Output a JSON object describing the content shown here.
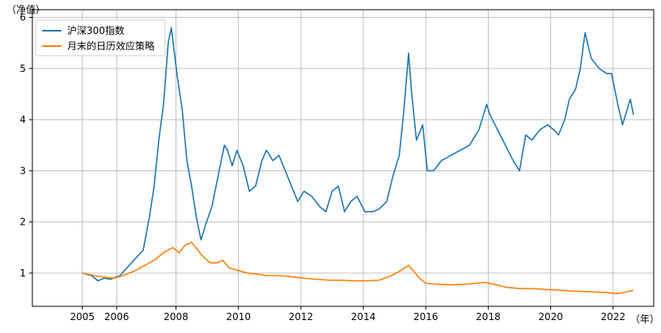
{
  "chart_data": {
    "type": "line",
    "title": "",
    "ylabel": "（净值）",
    "xlabel": "（年）",
    "xlim": [
      2003.4,
      2023.3
    ],
    "ylim": [
      0.35,
      6.15
    ],
    "grid": true,
    "legend_position": "top-left",
    "x_ticks": [
      {
        "value": 2005.0,
        "label": "2005"
      },
      {
        "value": 2006.1,
        "label": "2006"
      },
      {
        "value": 2008,
        "label": "2008"
      },
      {
        "value": 2010,
        "label": "2010"
      },
      {
        "value": 2012,
        "label": "2012"
      },
      {
        "value": 2014,
        "label": "2014"
      },
      {
        "value": 2016,
        "label": "2016"
      },
      {
        "value": 2018,
        "label": "2018"
      },
      {
        "value": 2020,
        "label": "2020"
      },
      {
        "value": 2022,
        "label": "2022"
      }
    ],
    "y_ticks": [
      {
        "value": 1,
        "label": "1"
      },
      {
        "value": 2,
        "label": "2"
      },
      {
        "value": 3,
        "label": "3"
      },
      {
        "value": 4,
        "label": "4"
      },
      {
        "value": 5,
        "label": "5"
      },
      {
        "value": 6,
        "label": "6"
      }
    ],
    "series": [
      {
        "name": "沪深300指数",
        "color": "#1f77b4",
        "points": [
          [
            2005.0,
            1.0
          ],
          [
            2005.3,
            0.95
          ],
          [
            2005.5,
            0.85
          ],
          [
            2005.7,
            0.9
          ],
          [
            2005.9,
            0.88
          ],
          [
            2006.2,
            0.95
          ],
          [
            2006.5,
            1.15
          ],
          [
            2006.8,
            1.35
          ],
          [
            2006.95,
            1.45
          ],
          [
            2007.15,
            2.1
          ],
          [
            2007.3,
            2.7
          ],
          [
            2007.45,
            3.6
          ],
          [
            2007.6,
            4.3
          ],
          [
            2007.75,
            5.5
          ],
          [
            2007.85,
            5.8
          ],
          [
            2007.95,
            5.3
          ],
          [
            2008.05,
            4.8
          ],
          [
            2008.2,
            4.2
          ],
          [
            2008.35,
            3.2
          ],
          [
            2008.5,
            2.7
          ],
          [
            2008.65,
            2.1
          ],
          [
            2008.8,
            1.65
          ],
          [
            2008.95,
            1.95
          ],
          [
            2009.15,
            2.3
          ],
          [
            2009.35,
            2.9
          ],
          [
            2009.55,
            3.5
          ],
          [
            2009.65,
            3.4
          ],
          [
            2009.8,
            3.1
          ],
          [
            2009.95,
            3.4
          ],
          [
            2010.15,
            3.1
          ],
          [
            2010.35,
            2.6
          ],
          [
            2010.55,
            2.7
          ],
          [
            2010.75,
            3.2
          ],
          [
            2010.9,
            3.4
          ],
          [
            2011.1,
            3.2
          ],
          [
            2011.3,
            3.3
          ],
          [
            2011.5,
            3.0
          ],
          [
            2011.7,
            2.7
          ],
          [
            2011.9,
            2.4
          ],
          [
            2012.1,
            2.6
          ],
          [
            2012.35,
            2.5
          ],
          [
            2012.6,
            2.3
          ],
          [
            2012.8,
            2.2
          ],
          [
            2013.0,
            2.6
          ],
          [
            2013.2,
            2.7
          ],
          [
            2013.4,
            2.2
          ],
          [
            2013.6,
            2.4
          ],
          [
            2013.8,
            2.5
          ],
          [
            2014.05,
            2.2
          ],
          [
            2014.3,
            2.2
          ],
          [
            2014.5,
            2.25
          ],
          [
            2014.75,
            2.4
          ],
          [
            2014.95,
            2.9
          ],
          [
            2015.15,
            3.3
          ],
          [
            2015.3,
            4.2
          ],
          [
            2015.45,
            5.3
          ],
          [
            2015.55,
            4.5
          ],
          [
            2015.7,
            3.6
          ],
          [
            2015.9,
            3.9
          ],
          [
            2016.05,
            3.0
          ],
          [
            2016.25,
            3.0
          ],
          [
            2016.5,
            3.2
          ],
          [
            2016.8,
            3.3
          ],
          [
            2017.1,
            3.4
          ],
          [
            2017.4,
            3.5
          ],
          [
            2017.7,
            3.8
          ],
          [
            2017.95,
            4.3
          ],
          [
            2018.05,
            4.1
          ],
          [
            2018.3,
            3.8
          ],
          [
            2018.55,
            3.5
          ],
          [
            2018.8,
            3.2
          ],
          [
            2019.0,
            3.0
          ],
          [
            2019.2,
            3.7
          ],
          [
            2019.4,
            3.6
          ],
          [
            2019.65,
            3.8
          ],
          [
            2019.9,
            3.9
          ],
          [
            2020.1,
            3.8
          ],
          [
            2020.25,
            3.7
          ],
          [
            2020.45,
            4.0
          ],
          [
            2020.6,
            4.4
          ],
          [
            2020.8,
            4.6
          ],
          [
            2020.95,
            5.0
          ],
          [
            2021.1,
            5.7
          ],
          [
            2021.3,
            5.2
          ],
          [
            2021.55,
            5.0
          ],
          [
            2021.8,
            4.9
          ],
          [
            2021.95,
            4.9
          ],
          [
            2022.15,
            4.3
          ],
          [
            2022.3,
            3.9
          ],
          [
            2022.45,
            4.2
          ],
          [
            2022.55,
            4.4
          ],
          [
            2022.65,
            4.1
          ]
        ]
      },
      {
        "name": "月末的日历效应策略",
        "color": "#ff7f0e",
        "points": [
          [
            2005.0,
            1.0
          ],
          [
            2005.4,
            0.95
          ],
          [
            2005.7,
            0.92
          ],
          [
            2006.0,
            0.9
          ],
          [
            2006.3,
            0.95
          ],
          [
            2006.7,
            1.05
          ],
          [
            2007.0,
            1.15
          ],
          [
            2007.3,
            1.25
          ],
          [
            2007.6,
            1.4
          ],
          [
            2007.9,
            1.5
          ],
          [
            2008.1,
            1.4
          ],
          [
            2008.3,
            1.55
          ],
          [
            2008.5,
            1.6
          ],
          [
            2008.7,
            1.45
          ],
          [
            2008.9,
            1.3
          ],
          [
            2009.1,
            1.2
          ],
          [
            2009.3,
            1.2
          ],
          [
            2009.5,
            1.25
          ],
          [
            2009.7,
            1.1
          ],
          [
            2010.0,
            1.05
          ],
          [
            2010.3,
            1.0
          ],
          [
            2010.6,
            0.98
          ],
          [
            2010.9,
            0.95
          ],
          [
            2011.3,
            0.95
          ],
          [
            2011.7,
            0.93
          ],
          [
            2012.1,
            0.9
          ],
          [
            2012.5,
            0.88
          ],
          [
            2012.9,
            0.86
          ],
          [
            2013.3,
            0.86
          ],
          [
            2013.7,
            0.85
          ],
          [
            2014.1,
            0.85
          ],
          [
            2014.5,
            0.86
          ],
          [
            2014.9,
            0.95
          ],
          [
            2015.2,
            1.05
          ],
          [
            2015.45,
            1.15
          ],
          [
            2015.6,
            1.05
          ],
          [
            2015.8,
            0.9
          ],
          [
            2016.0,
            0.8
          ],
          [
            2016.4,
            0.78
          ],
          [
            2016.8,
            0.77
          ],
          [
            2017.2,
            0.78
          ],
          [
            2017.6,
            0.8
          ],
          [
            2017.9,
            0.82
          ],
          [
            2018.2,
            0.78
          ],
          [
            2018.6,
            0.72
          ],
          [
            2019.0,
            0.7
          ],
          [
            2019.4,
            0.7
          ],
          [
            2019.8,
            0.68
          ],
          [
            2020.2,
            0.67
          ],
          [
            2020.6,
            0.65
          ],
          [
            2021.0,
            0.64
          ],
          [
            2021.4,
            0.63
          ],
          [
            2021.8,
            0.62
          ],
          [
            2022.1,
            0.6
          ],
          [
            2022.35,
            0.62
          ],
          [
            2022.55,
            0.65
          ],
          [
            2022.65,
            0.66
          ]
        ]
      }
    ]
  }
}
